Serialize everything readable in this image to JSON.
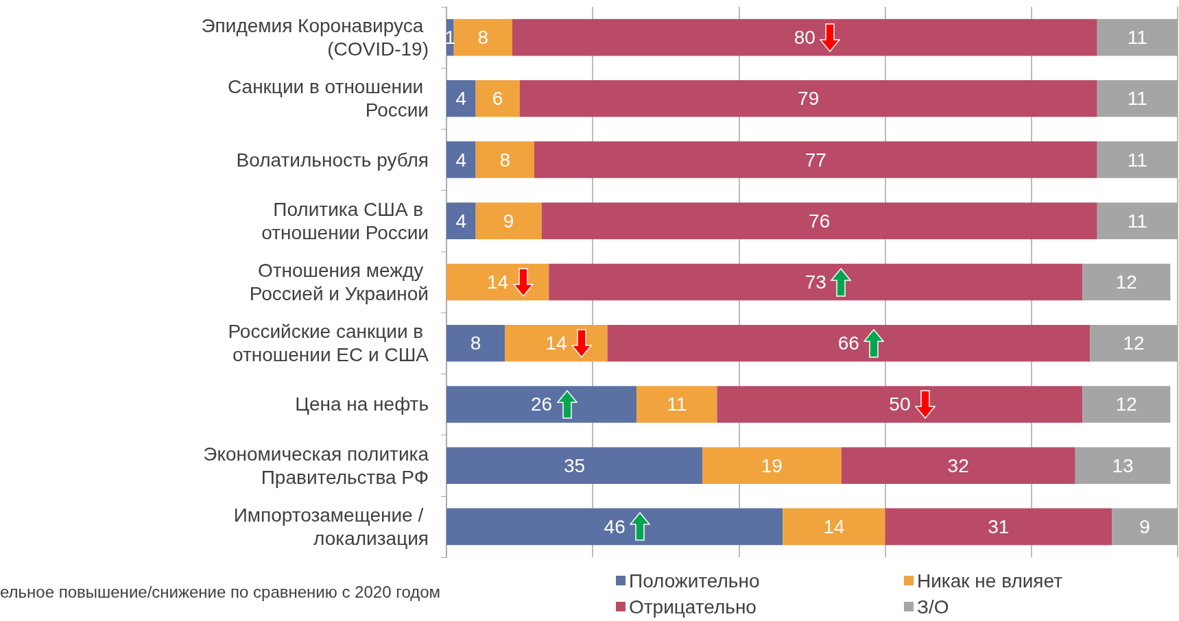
{
  "chart_data": {
    "type": "bar",
    "orientation": "horizontal",
    "stacked": true,
    "categories": [
      "Эпидемия Коронавируса (COVID-19)",
      "Санкции в отношении России",
      "Волатильность рубля",
      "Политика США в отношении России",
      "Отношения между Россией и Украиной",
      "Российские санкции в отношении ЕС и США",
      "Цена на нефть",
      "Экономическая политика Правительства РФ",
      "Импортозамещение / локализация"
    ],
    "series": [
      {
        "name": "Положительно",
        "color": "#5b70a3",
        "values": [
          1,
          4,
          4,
          4,
          null,
          8,
          26,
          35,
          46
        ]
      },
      {
        "name": "Никак не влияет",
        "color": "#f1a33d",
        "values": [
          8,
          6,
          8,
          9,
          14,
          14,
          11,
          19,
          14
        ]
      },
      {
        "name": "Отрицательно",
        "color": "#b94b67",
        "values": [
          80,
          79,
          77,
          76,
          73,
          66,
          50,
          32,
          31
        ]
      },
      {
        "name": "З/О",
        "color": "#a5a5a5",
        "values": [
          11,
          11,
          11,
          11,
          12,
          12,
          12,
          13,
          9
        ]
      }
    ],
    "xlim": [
      0,
      100
    ],
    "xticks": [
      {
        "value": 0,
        "label": null
      },
      {
        "value": 20,
        "label": null
      },
      {
        "value": 40,
        "label": null
      },
      {
        "value": 60,
        "label": null
      },
      {
        "value": 80,
        "label": null
      },
      {
        "value": 100,
        "label": null
      }
    ],
    "tick_labels": "y",
    "grid": "x",
    "data_labels": true,
    "legend": "bottom",
    "annotations": [
      "ельное повышение/снижение по сравнению с 2020 годом"
    ]
  }
}
